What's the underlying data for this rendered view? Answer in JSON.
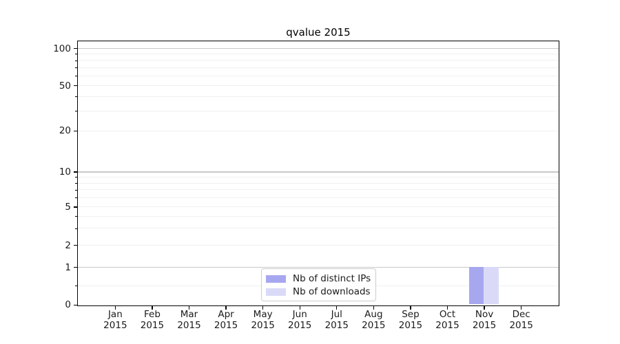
{
  "page": {
    "title": "qvalue 2015"
  },
  "chart_data": {
    "type": "bar",
    "title": "qvalue 2015",
    "categories": [
      "Jan",
      "Feb",
      "Mar",
      "Apr",
      "May",
      "Jun",
      "Jul",
      "Aug",
      "Sep",
      "Oct",
      "Nov",
      "Dec"
    ],
    "year": "2015",
    "x_labels": [
      "Jan 2015",
      "Feb 2015",
      "Mar 2015",
      "Apr 2015",
      "May 2015",
      "Jun 2015",
      "Jul 2015",
      "Aug 2015",
      "Sep 2015",
      "Oct 2015",
      "Nov 2015",
      "Dec 2015"
    ],
    "series": [
      {
        "name": "Nb of distinct IPs",
        "color": "#a7a7f0",
        "values": [
          0,
          0,
          0,
          0,
          0,
          0,
          0,
          0,
          0,
          0,
          1,
          0
        ]
      },
      {
        "name": "Nb of downloads",
        "color": "#dadaf8",
        "values": [
          0,
          0,
          0,
          0,
          0,
          0,
          0,
          0,
          0,
          0,
          1,
          0
        ]
      }
    ],
    "yscale": "symlog",
    "ylim": [
      0,
      110
    ],
    "yticks": [
      0,
      1,
      2,
      5,
      10,
      20,
      50,
      100
    ],
    "grid": true,
    "legend_position": "lower center (inside plot)"
  },
  "colors": {
    "background": "#ffffff",
    "spine": "#000000",
    "grid_major": "#c9c9c9",
    "grid_minor": "#f0f0f0",
    "distinct_ips": "#a7a7f0",
    "downloads": "#dadaf8"
  }
}
